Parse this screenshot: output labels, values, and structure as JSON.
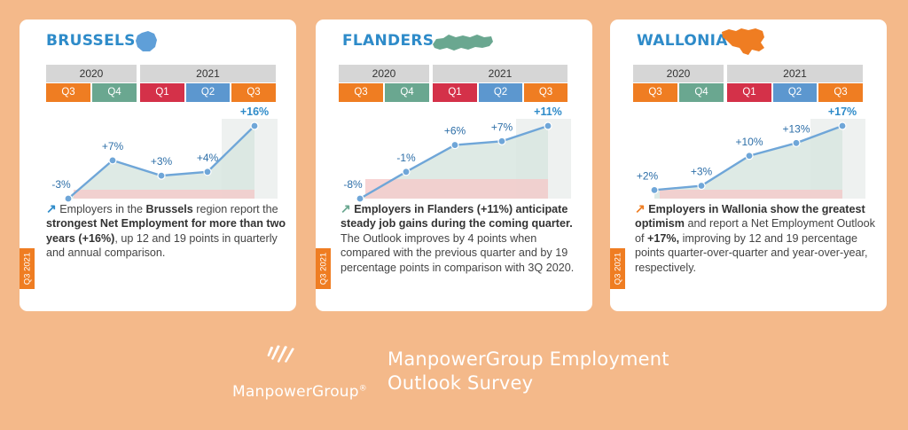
{
  "colors": {
    "background": "#f4b98a",
    "accent_blue": "#2e8bc9",
    "line_blue": "#6fa6d8",
    "q3_orange": "#ef7d22",
    "q4_green": "#6aa790",
    "q1_red": "#d43149",
    "q2_blue": "#5c97cf",
    "year_gray": "#d6d6d6",
    "area_green": "#d8e6e0",
    "area_pink": "#f5c9c9",
    "tab_orange": "#ef7d22"
  },
  "cards": [
    {
      "region": "BRUSSELS",
      "map_icon": "brussels-map-icon",
      "map_color": "#5f9fd8",
      "years": [
        "2020",
        "2021"
      ],
      "quarters": [
        "Q3",
        "Q4",
        "Q1",
        "Q2",
        "Q3"
      ],
      "point_labels": [
        "-3%",
        "+7%",
        "+3%",
        "+4%",
        "+16%"
      ],
      "desc": {
        "p1": " Employers in the ",
        "p2": "Brussels",
        "p3": " region report the ",
        "p4": "strongest Net Employment for more than two years (+16%)",
        "p5": ", up 12 and 19 points in quarterly and annual comparison."
      },
      "tab": "Q3 2021"
    },
    {
      "region": "FLANDERS",
      "map_icon": "flanders-map-icon",
      "map_color": "#6aa790",
      "years": [
        "2020",
        "2021"
      ],
      "quarters": [
        "Q3",
        "Q4",
        "Q1",
        "Q2",
        "Q3"
      ],
      "point_labels": [
        "-8%",
        "-1%",
        "+6%",
        "+7%",
        "+11%"
      ],
      "desc": {
        "p1": "Employers in Flanders (+11%) anticipate steady job gains during the coming quarter.",
        "p2": " The Outlook improves by 4 points when compared with the previous quarter and by 19 percentage points in comparison with 3Q 2020."
      },
      "tab": "Q3 2021"
    },
    {
      "region": "WALLONIA",
      "map_icon": "wallonia-map-icon",
      "map_color": "#ef7d22",
      "years": [
        "2020",
        "2021"
      ],
      "quarters": [
        "Q3",
        "Q4",
        "Q1",
        "Q2",
        "Q3"
      ],
      "point_labels": [
        "+2%",
        "+3%",
        "+10%",
        "+13%",
        "+17%"
      ],
      "desc": {
        "p1": "Employers in Wallonia show the greatest optimism",
        "p2": " and report a Net Employment Outlook of ",
        "p3": "+17%,",
        "p4": " improving by 12 and 19 percentage points quarter-over-quarter and year-over-year, respectively."
      },
      "tab": "Q3 2021"
    }
  ],
  "footer": {
    "logo_text": "ManpowerGroup",
    "logo_reg": "®",
    "title_line1": "ManpowerGroup Employment",
    "title_line2": "Outlook Survey"
  },
  "chart_data": [
    {
      "type": "area",
      "title": "BRUSSELS",
      "categories": [
        "Q3 2020",
        "Q4 2020",
        "Q1 2021",
        "Q2 2021",
        "Q3 2021"
      ],
      "series": [
        {
          "values": [
            -3,
            7,
            3,
            4,
            16
          ]
        }
      ],
      "ylim": [
        -3,
        16
      ]
    },
    {
      "type": "area",
      "title": "FLANDERS",
      "categories": [
        "Q3 2020",
        "Q4 2020",
        "Q1 2021",
        "Q2 2021",
        "Q3 2021"
      ],
      "series": [
        {
          "values": [
            -8,
            -1,
            6,
            7,
            11
          ]
        }
      ],
      "ylim": [
        -8,
        11
      ]
    },
    {
      "type": "area",
      "title": "WALLONIA",
      "categories": [
        "Q3 2020",
        "Q4 2020",
        "Q1 2021",
        "Q2 2021",
        "Q3 2021"
      ],
      "series": [
        {
          "values": [
            2,
            3,
            10,
            13,
            17
          ]
        }
      ],
      "ylim": [
        0,
        17
      ]
    }
  ]
}
